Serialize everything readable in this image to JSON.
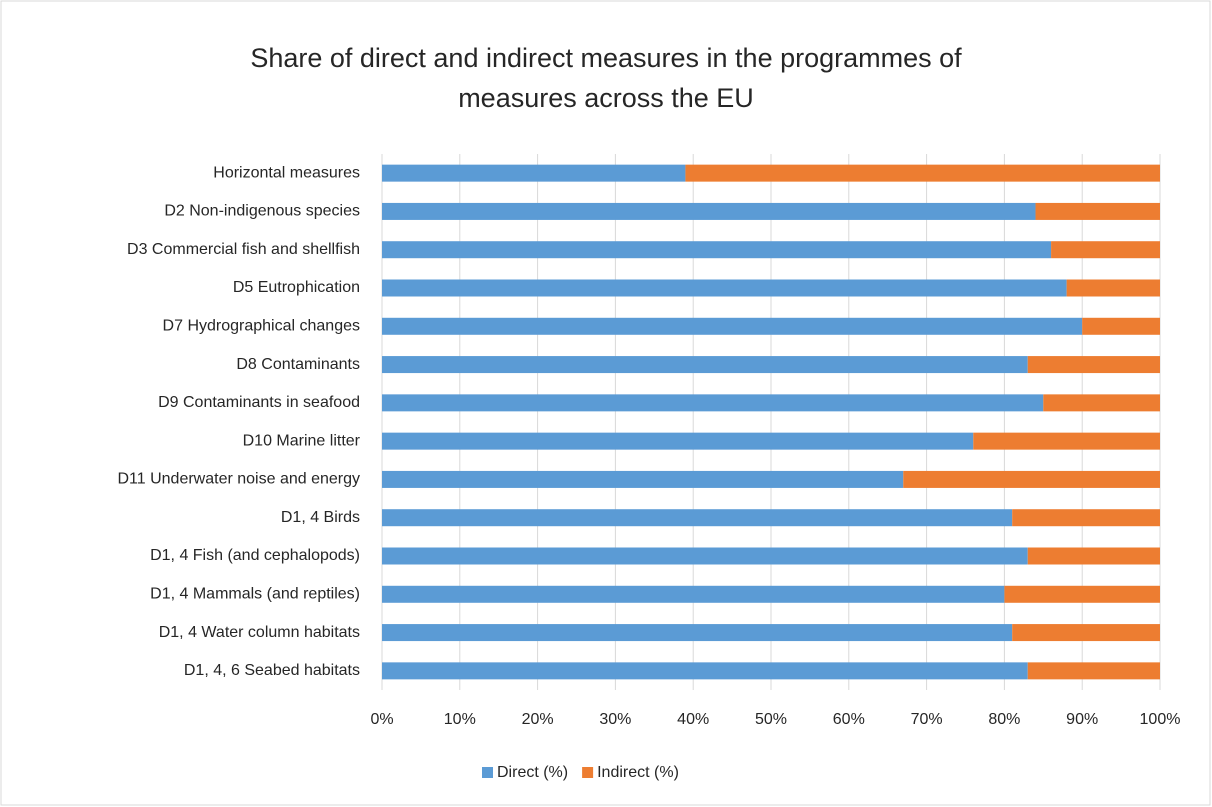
{
  "chart_data": {
    "type": "stacked_barh",
    "title": "Share of direct and indirect measures in the programmes of measures across the EU",
    "categories": [
      "Horizontal measures",
      "D2 Non-indigenous species",
      "D3 Commercial fish and shellfish",
      "D5 Eutrophication",
      "D7 Hydrographical changes",
      "D8 Contaminants ",
      "D9 Contaminants in seafood",
      "D10 Marine litter",
      "D11 Underwater noise and energy",
      "D1, 4 Birds",
      "D1, 4 Fish (and cephalopods)",
      "D1, 4 Mammals (and reptiles)",
      "D1, 4 Water column habitats",
      "D1, 4, 6 Seabed habitats"
    ],
    "series": [
      {
        "name": "Direct (%)",
        "color": "#5b9bd5",
        "values": [
          39,
          84,
          86,
          88,
          90,
          83,
          85,
          76,
          67,
          81,
          83,
          80,
          81,
          83
        ]
      },
      {
        "name": "Indirect (%)",
        "color": "#ed7d31",
        "values": [
          61,
          16,
          14,
          12,
          10,
          17,
          15,
          24,
          33,
          19,
          17,
          20,
          19,
          17
        ]
      }
    ],
    "xlim": [
      0,
      100
    ],
    "xticks": [
      {
        "value": 0,
        "label": "0%"
      },
      {
        "value": 10,
        "label": "10%"
      },
      {
        "value": 20,
        "label": "20%"
      },
      {
        "value": 30,
        "label": "30%"
      },
      {
        "value": 40,
        "label": "40%"
      },
      {
        "value": 50,
        "label": "50%"
      },
      {
        "value": 60,
        "label": "60%"
      },
      {
        "value": 70,
        "label": "70%"
      },
      {
        "value": 80,
        "label": "80%"
      },
      {
        "value": 90,
        "label": "90%"
      },
      {
        "value": 100,
        "label": "100%"
      }
    ],
    "grid": true,
    "legend": "bottom"
  }
}
